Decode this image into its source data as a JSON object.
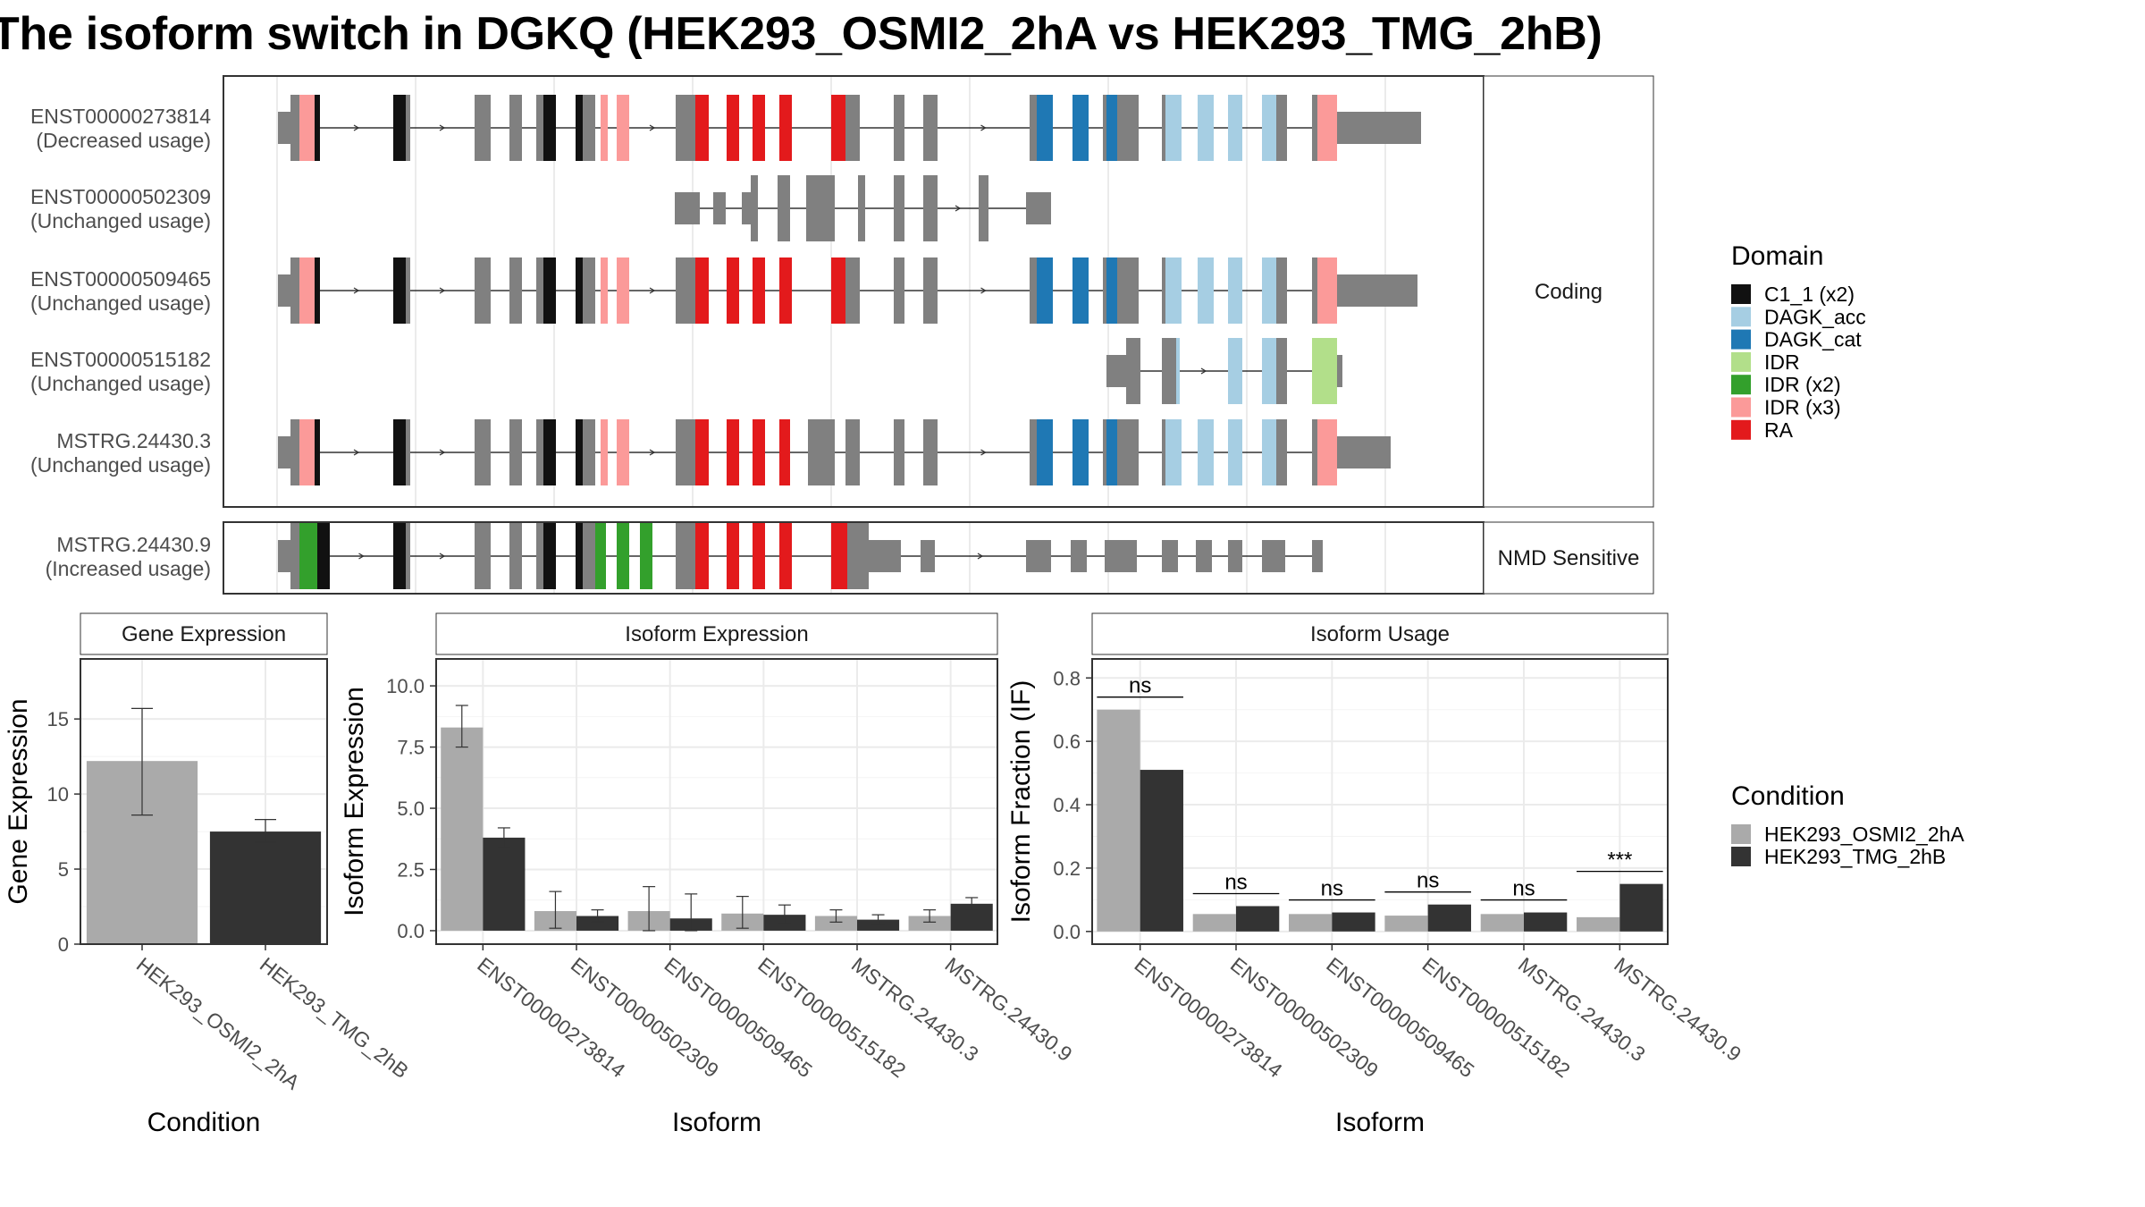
{
  "title": "The isoform switch in DGKQ (HEK293_OSMI2_2hA vs HEK293_TMG_2hB)",
  "colors": {
    "C1_1 (x2)": "#111111",
    "DAGK_acc": "#a6cee3",
    "DAGK_cat": "#1f78b4",
    "IDR": "#b2df8a",
    "IDR (x2)": "#33a02c",
    "IDR (x3)": "#fb9a99",
    "RA": "#e31a1c",
    "exon": "#808080",
    "cond1": "#aaaaaa",
    "cond2": "#333333",
    "panel_border": "#333333",
    "strip_bg": "#ffffff"
  },
  "structure": {
    "groups": [
      {
        "label": "Coding",
        "isoforms": [
          "ENST00000273814",
          "ENST00000502309",
          "ENST00000509465",
          "ENST00000515182",
          "MSTRG.24430.3"
        ]
      },
      {
        "label": "NMD Sensitive",
        "isoforms": [
          "MSTRG.24430.9"
        ]
      }
    ],
    "isoforms": [
      {
        "id": "ENST00000273814",
        "usage": "(Decreased usage)"
      },
      {
        "id": "ENST00000502309",
        "usage": "(Unchanged usage)"
      },
      {
        "id": "ENST00000509465",
        "usage": "(Unchanged usage)"
      },
      {
        "id": "ENST00000515182",
        "usage": "(Unchanged usage)"
      },
      {
        "id": "MSTRG.24430.3",
        "usage": "(Unchanged usage)"
      },
      {
        "id": "MSTRG.24430.9",
        "usage": "(Increased usage)"
      }
    ]
  },
  "legend_domain": {
    "title": "Domain",
    "items": [
      "C1_1 (x2)",
      "DAGK_acc",
      "DAGK_cat",
      "IDR",
      "IDR (x2)",
      "IDR (x3)",
      "RA"
    ]
  },
  "legend_condition": {
    "title": "Condition",
    "items": [
      "HEK293_OSMI2_2hA",
      "HEK293_TMG_2hB"
    ]
  },
  "chart_data": [
    {
      "type": "bar",
      "title": "Gene Expression",
      "xlabel": "Condition",
      "ylabel": "Gene Expression",
      "categories": [
        "HEK293_OSMI2_2hA",
        "HEK293_TMG_2hB"
      ],
      "values": [
        12.2,
        7.5
      ],
      "error_low": [
        8.6,
        6.8
      ],
      "error_high": [
        15.7,
        8.3
      ],
      "ylim": [
        0,
        19
      ],
      "yticks": [
        0,
        5,
        10,
        15
      ],
      "ytick_labels": [
        "0",
        "5",
        "10",
        "15"
      ],
      "grid": true
    },
    {
      "type": "bar",
      "title": "Isoform Expression",
      "xlabel": "Isoform",
      "ylabel": "Isoform Expression",
      "categories": [
        "ENST00000273814",
        "ENST00000502309",
        "ENST00000509465",
        "ENST00000515182",
        "MSTRG.24430.3",
        "MSTRG.24430.9"
      ],
      "series": [
        {
          "name": "HEK293_OSMI2_2hA",
          "values": [
            8.3,
            0.8,
            0.8,
            0.7,
            0.6,
            0.6
          ],
          "error_low": [
            7.5,
            0.1,
            0.0,
            0.1,
            0.35,
            0.35
          ],
          "error_high": [
            9.2,
            1.6,
            1.8,
            1.4,
            0.85,
            0.85
          ]
        },
        {
          "name": "HEK293_TMG_2hB",
          "values": [
            3.8,
            0.6,
            0.5,
            0.65,
            0.45,
            1.1
          ],
          "error_low": [
            3.4,
            0.35,
            0.0,
            0.3,
            0.25,
            0.85
          ],
          "error_high": [
            4.2,
            0.85,
            1.5,
            1.05,
            0.65,
            1.35
          ]
        }
      ],
      "ylim": [
        -0.55,
        11.1
      ],
      "yticks": [
        0.0,
        2.5,
        5.0,
        7.5,
        10.0
      ],
      "ytick_labels": [
        "0.0",
        "2.5",
        "5.0",
        "7.5",
        "10.0"
      ],
      "grid": true
    },
    {
      "type": "bar",
      "title": "Isoform Usage",
      "xlabel": "Isoform",
      "ylabel": "Isoform Fraction (IF)",
      "categories": [
        "ENST00000273814",
        "ENST00000502309",
        "ENST00000509465",
        "ENST00000515182",
        "MSTRG.24430.3",
        "MSTRG.24430.9"
      ],
      "series": [
        {
          "name": "HEK293_OSMI2_2hA",
          "values": [
            0.7,
            0.055,
            0.055,
            0.05,
            0.055,
            0.045
          ]
        },
        {
          "name": "HEK293_TMG_2hB",
          "values": [
            0.51,
            0.08,
            0.06,
            0.085,
            0.06,
            0.15
          ]
        }
      ],
      "significance": [
        "ns",
        "ns",
        "ns",
        "ns",
        "ns",
        "***"
      ],
      "ylim": [
        -0.04,
        0.86
      ],
      "yticks": [
        0.0,
        0.2,
        0.4,
        0.6,
        0.8
      ],
      "ytick_labels": [
        "0.0",
        "0.2",
        "0.4",
        "0.6",
        "0.8"
      ],
      "grid": true
    }
  ]
}
